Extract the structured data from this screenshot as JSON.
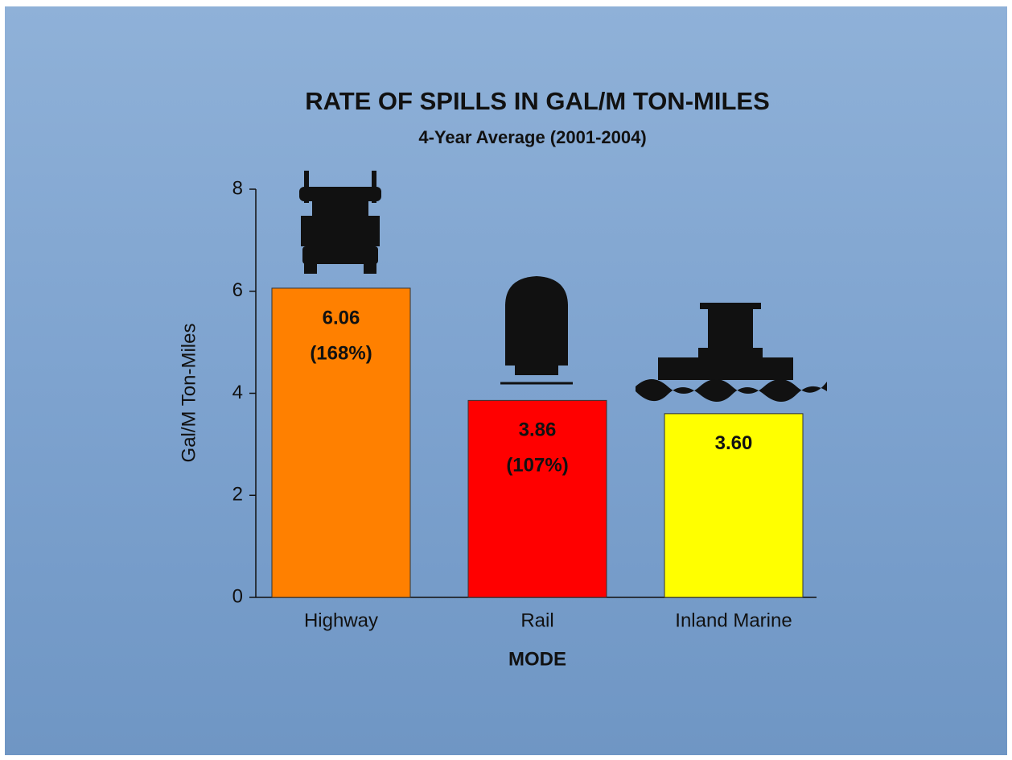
{
  "chart_data": {
    "type": "bar",
    "title": "RATE OF SPILLS IN GAL/M TON-MILES",
    "subtitle": "4-Year Average (2001-2004)",
    "y_label": "Gal/M Ton-Miles",
    "x_label": "MODE",
    "categories": [
      "Highway",
      "Rail",
      "Inland Marine"
    ],
    "values": [
      6.06,
      3.86,
      3.6
    ],
    "value_labels": [
      "6.06",
      "3.86",
      "3.60"
    ],
    "annotations": [
      "(168%)",
      "(107%)"
    ],
    "colors": [
      "#ff8000",
      "#ff0000",
      "#ffff00"
    ],
    "ylim": [
      0,
      8
    ],
    "yticks": [
      0,
      2,
      4,
      6,
      8
    ],
    "grid": false
  }
}
